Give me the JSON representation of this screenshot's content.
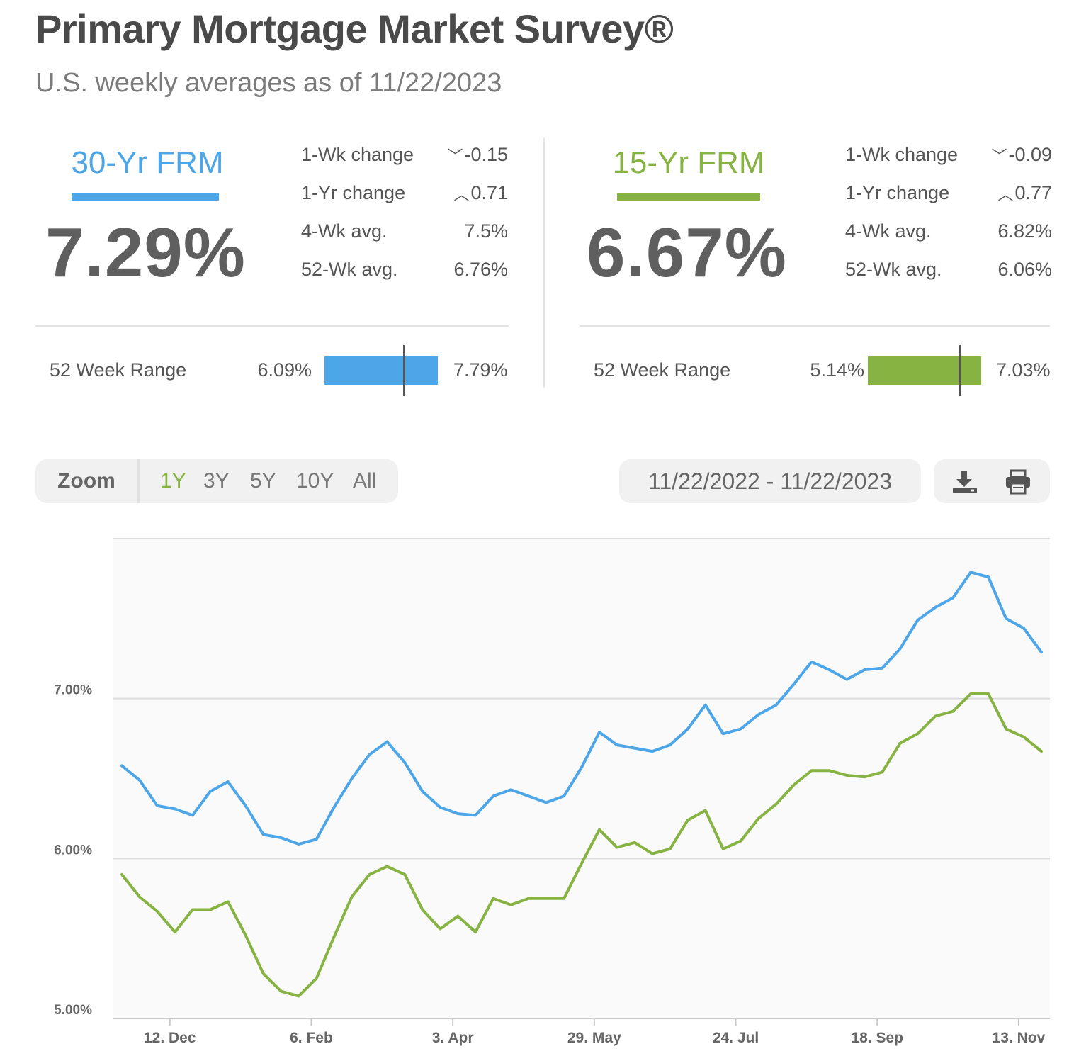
{
  "header": {
    "title": "Primary Mortgage Market Survey®",
    "subtitle": "U.S. weekly averages as of 11/22/2023"
  },
  "colors": {
    "frm30": "#4da6e8",
    "frm15": "#86b342"
  },
  "rates": [
    {
      "name": "30-Yr FRM",
      "value": "7.29%",
      "stats": [
        {
          "label": "1-Wk change",
          "arrow": "down",
          "value": "-0.15"
        },
        {
          "label": "1-Yr change",
          "arrow": "up",
          "value": "0.71"
        },
        {
          "label": "4-Wk avg.",
          "arrow": "",
          "value": "7.5%"
        },
        {
          "label": "52-Wk avg.",
          "arrow": "",
          "value": "6.76%"
        }
      ],
      "range": {
        "label": "52 Week Range",
        "low": "6.09%",
        "high": "7.79%",
        "low_value": 6.09,
        "high_value": 7.79,
        "current_value": 7.29
      }
    },
    {
      "name": "15-Yr FRM",
      "value": "6.67%",
      "stats": [
        {
          "label": "1-Wk change",
          "arrow": "down",
          "value": "-0.09"
        },
        {
          "label": "1-Yr change",
          "arrow": "up",
          "value": "0.77"
        },
        {
          "label": "4-Wk avg.",
          "arrow": "",
          "value": "6.82%"
        },
        {
          "label": "52-Wk avg.",
          "arrow": "",
          "value": "6.06%"
        }
      ],
      "range": {
        "label": "52 Week Range",
        "low": "5.14%",
        "high": "7.03%",
        "low_value": 5.14,
        "high_value": 7.03,
        "current_value": 6.67
      }
    }
  ],
  "controls": {
    "zoom_label": "Zoom",
    "zoom_options": [
      "1Y",
      "3Y",
      "5Y",
      "10Y",
      "All"
    ],
    "active_zoom": "1Y",
    "date_range": "11/22/2022 - 11/22/2023",
    "download_icon": "download-icon",
    "print_icon": "print-icon"
  },
  "chart_data": {
    "type": "line",
    "x_start": "2022-11-23",
    "x_end": "2023-11-22",
    "x_step_days": 7,
    "ylim": [
      5.0,
      8.0
    ],
    "yticks": [
      {
        "value": 5.0,
        "label": "5.00%"
      },
      {
        "value": 6.0,
        "label": "6.00%"
      },
      {
        "value": 7.0,
        "label": "7.00%"
      }
    ],
    "xticks": [
      {
        "date": "2022-12-12",
        "label": "12. Dec"
      },
      {
        "date": "2023-02-06",
        "label": "6. Feb"
      },
      {
        "date": "2023-04-03",
        "label": "3. Apr"
      },
      {
        "date": "2023-05-29",
        "label": "29. May"
      },
      {
        "date": "2023-07-24",
        "label": "24. Jul"
      },
      {
        "date": "2023-09-18",
        "label": "18. Sep"
      },
      {
        "date": "2023-11-13",
        "label": "13. Nov"
      }
    ],
    "series": [
      {
        "key": "frm30",
        "values": [
          6.58,
          6.49,
          6.33,
          6.31,
          6.27,
          6.42,
          6.48,
          6.33,
          6.15,
          6.13,
          6.09,
          6.12,
          6.32,
          6.5,
          6.65,
          6.73,
          6.6,
          6.42,
          6.32,
          6.28,
          6.27,
          6.39,
          6.43,
          6.39,
          6.35,
          6.39,
          6.57,
          6.79,
          6.71,
          6.69,
          6.67,
          6.71,
          6.81,
          6.96,
          6.78,
          6.81,
          6.9,
          6.96,
          7.09,
          7.23,
          7.18,
          7.12,
          7.18,
          7.19,
          7.31,
          7.49,
          7.57,
          7.63,
          7.79,
          7.76,
          7.5,
          7.44,
          7.29
        ]
      },
      {
        "key": "frm15",
        "values": [
          5.9,
          5.76,
          5.67,
          5.54,
          5.68,
          5.68,
          5.73,
          5.52,
          5.28,
          5.17,
          5.14,
          5.25,
          5.51,
          5.76,
          5.9,
          5.95,
          5.9,
          5.68,
          5.56,
          5.64,
          5.54,
          5.75,
          5.71,
          5.75,
          5.75,
          5.75,
          5.97,
          6.18,
          6.07,
          6.1,
          6.03,
          6.06,
          6.24,
          6.3,
          6.06,
          6.11,
          6.25,
          6.34,
          6.46,
          6.55,
          6.55,
          6.52,
          6.51,
          6.54,
          6.72,
          6.78,
          6.89,
          6.92,
          7.03,
          7.03,
          6.81,
          6.76,
          6.67
        ]
      }
    ]
  }
}
